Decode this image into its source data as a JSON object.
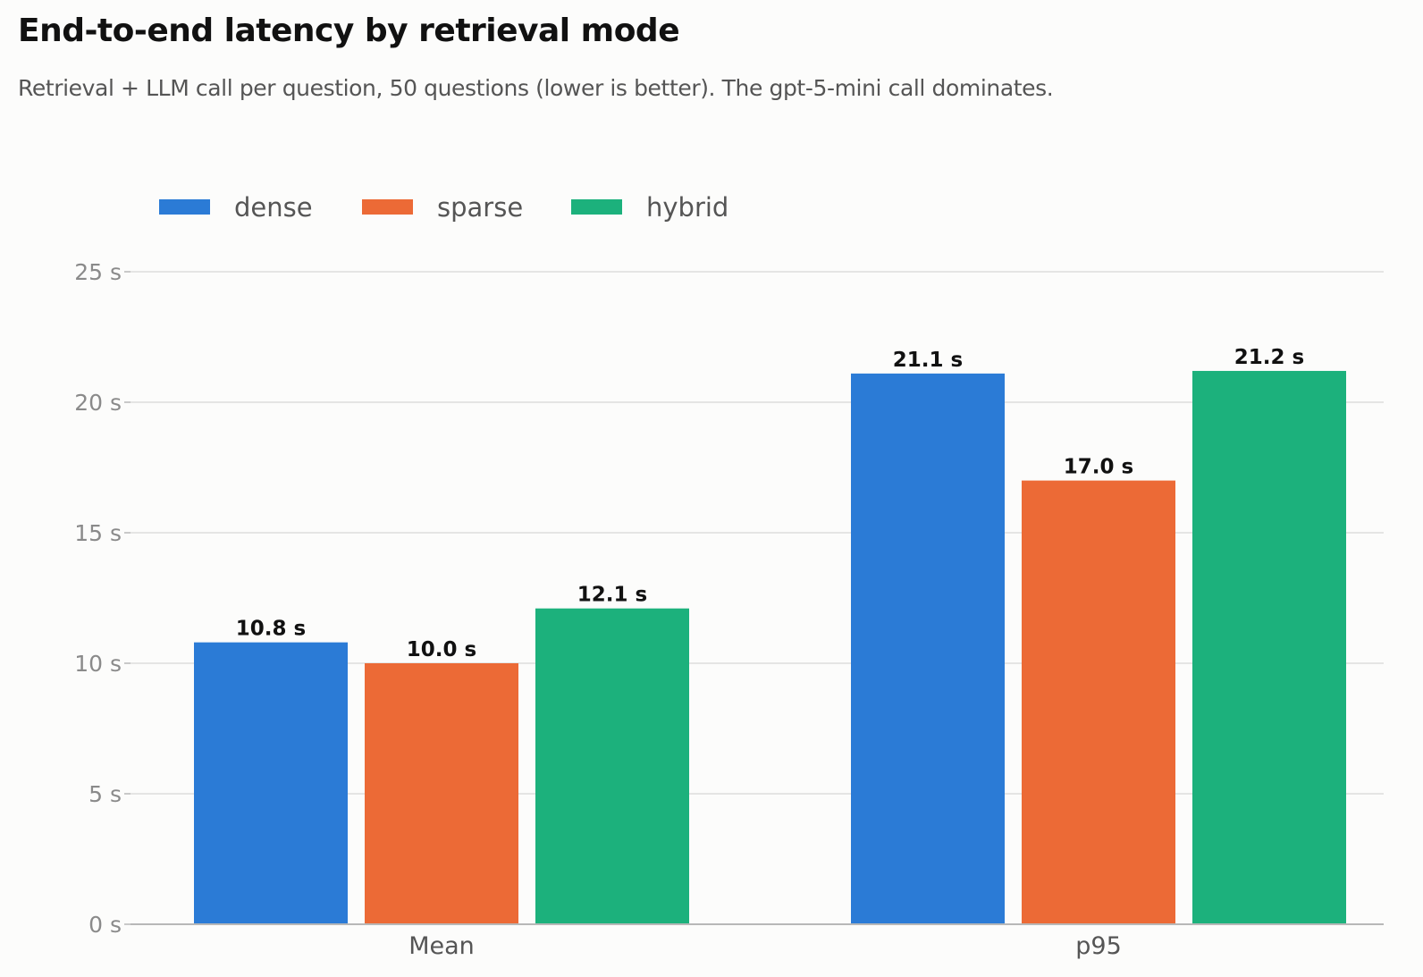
{
  "chart_data": {
    "type": "bar",
    "title": "End-to-end latency by retrieval mode",
    "subtitle": "Retrieval + LLM call per question, 50 questions (lower is better). The gpt-5-mini call dominates.",
    "categories": [
      "Mean",
      "p95"
    ],
    "series": [
      {
        "name": "dense",
        "color": "#2b7bd6",
        "values": [
          10.8,
          21.1
        ],
        "labels": [
          "10.8 s",
          "21.1 s"
        ]
      },
      {
        "name": "sparse",
        "color": "#ec6a36",
        "values": [
          10.0,
          17.0
        ],
        "labels": [
          "10.0 s",
          "17.0 s"
        ]
      },
      {
        "name": "hybrid",
        "color": "#1cb17c",
        "values": [
          12.1,
          21.2
        ],
        "labels": [
          "12.1 s",
          "21.2 s"
        ]
      }
    ],
    "yticks": [
      0,
      5,
      10,
      15,
      20,
      25
    ],
    "ytick_labels": [
      "0 s",
      "5 s",
      "10 s",
      "15 s",
      "20 s",
      "25 s"
    ],
    "ylim": [
      0,
      25
    ],
    "xlabel": "",
    "ylabel": "",
    "grid": "horizontal",
    "legend": "top-left",
    "gridColor": "#dddddd",
    "axisColor": "#b8b8b8"
  }
}
